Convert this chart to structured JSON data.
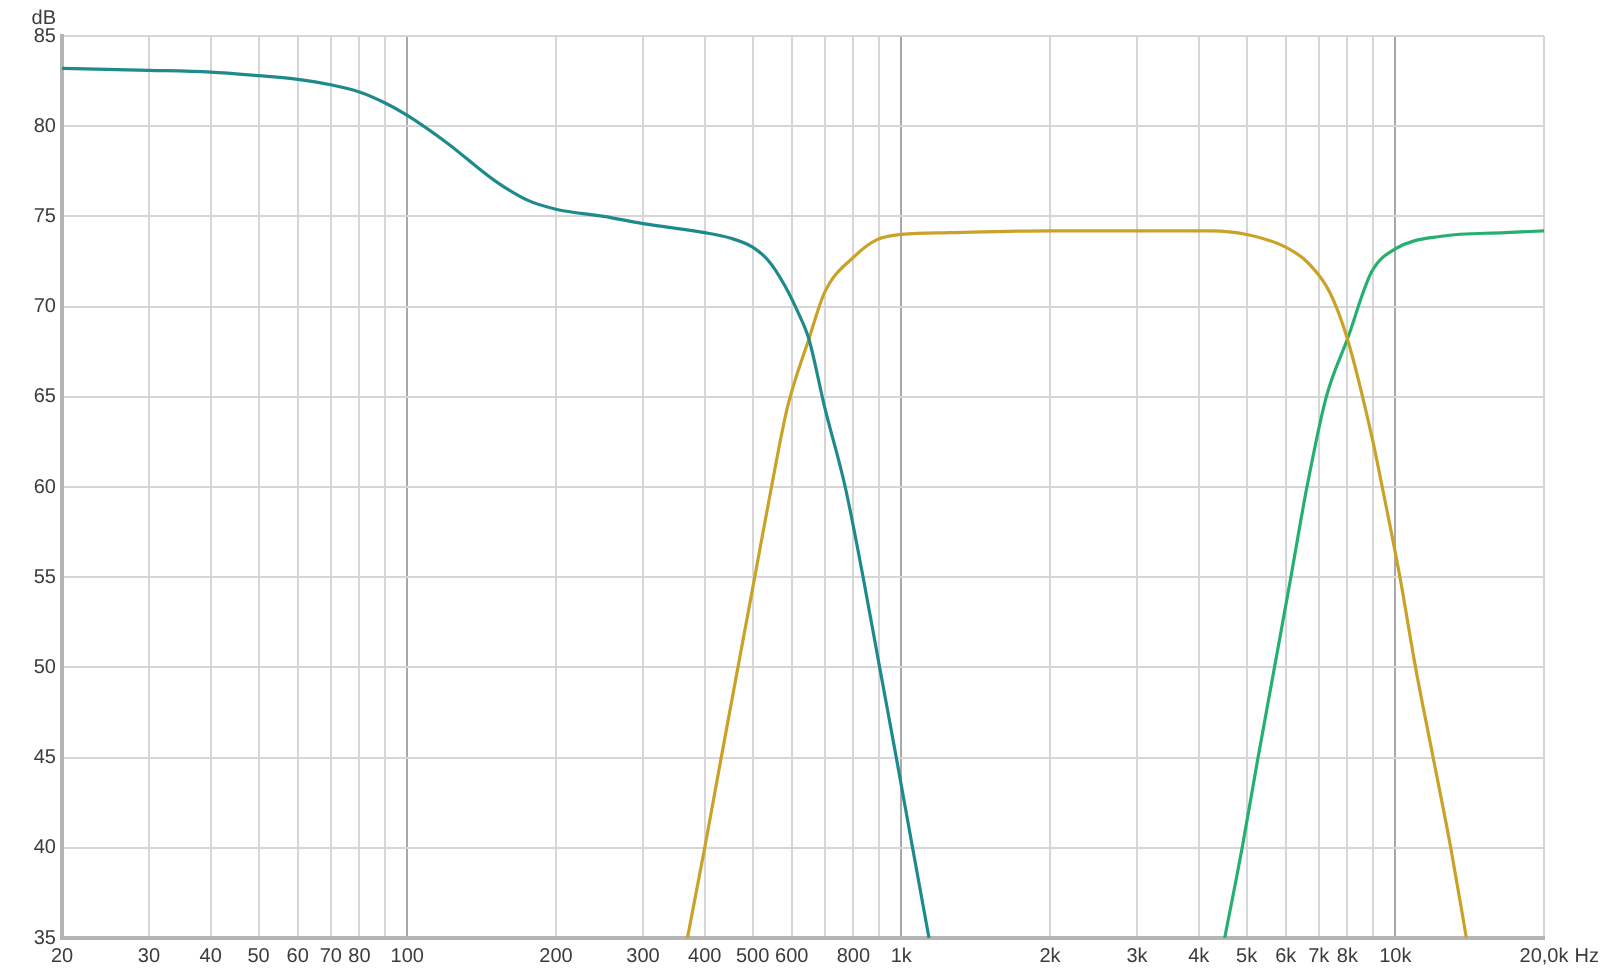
{
  "chart_data": {
    "type": "line",
    "xlabel": "Hz",
    "ylabel": "dB",
    "log": "x",
    "grid": true,
    "marker": "none",
    "xlim": [
      20,
      20000
    ],
    "ylim": [
      35,
      85
    ],
    "xticks": [
      20,
      30,
      40,
      50,
      60,
      70,
      80,
      {
        "value": 90,
        "label": null
      },
      100,
      200,
      300,
      400,
      500,
      600,
      {
        "value": 700,
        "label": null
      },
      800,
      {
        "value": 900,
        "label": null
      },
      {
        "value": 1000,
        "label": "1k"
      },
      {
        "value": 2000,
        "label": "2k"
      },
      {
        "value": 3000,
        "label": "3k"
      },
      {
        "value": 4000,
        "label": "4k"
      },
      {
        "value": 5000,
        "label": "5k"
      },
      {
        "value": 6000,
        "label": "6k"
      },
      {
        "value": 7000,
        "label": "7k"
      },
      {
        "value": 8000,
        "label": "8k"
      },
      {
        "value": 9000,
        "label": null
      },
      {
        "value": 10000,
        "label": "10k"
      },
      {
        "value": 20000,
        "label": "20,0k"
      }
    ],
    "yticks": [
      35,
      40,
      45,
      50,
      55,
      60,
      65,
      70,
      75,
      80,
      85
    ],
    "series": [
      {
        "color": "#1f8a8c",
        "x": [
          20,
          30,
          40,
          50,
          60,
          70,
          80,
          90,
          100,
          120,
          150,
          175,
          200,
          250,
          300,
          400,
          450,
          500,
          540,
          580,
          620,
          650,
          700,
          770,
          837,
          904,
          977,
          1054,
          1138
        ],
        "values": [
          83.2,
          83.1,
          83.0,
          82.8,
          82.6,
          82.3,
          81.9,
          81.3,
          80.6,
          79.1,
          77.0,
          75.9,
          75.4,
          75.0,
          74.6,
          74.1,
          73.8,
          73.3,
          72.5,
          71.2,
          69.6,
          68.2,
          64.4,
          60.0,
          55.0,
          50.0,
          45.0,
          40.0,
          35.0
        ]
      },
      {
        "color": "#c9a227",
        "x": [
          369,
          400,
          432,
          467,
          505,
          546,
          588,
          650,
          700,
          805,
          891,
          1000,
          1258,
          2000,
          3000,
          4254,
          5000,
          6000,
          6677,
          7367,
          8000,
          8946,
          9410,
          10220,
          10990,
          11930,
          12950,
          13930
        ],
        "values": [
          35,
          40,
          45,
          50,
          55,
          60,
          64.4,
          68.2,
          70.8,
          72.8,
          73.7,
          74.0,
          74.1,
          74.2,
          74.2,
          74.2,
          74.0,
          73.3,
          72.4,
          70.8,
          68.2,
          62.9,
          60.0,
          55.0,
          50.0,
          45.0,
          40.0,
          35.0
        ]
      },
      {
        "color": "#25b070",
        "x": [
          4515,
          4898,
          5274,
          5694,
          6146,
          6624,
          7250,
          8000,
          8946,
          10000,
          12400,
          16700,
          20000
        ],
        "values": [
          35,
          40,
          45,
          50,
          55,
          60,
          65,
          68.2,
          71.9,
          73.2,
          73.9,
          74.1,
          74.2
        ]
      }
    ]
  }
}
